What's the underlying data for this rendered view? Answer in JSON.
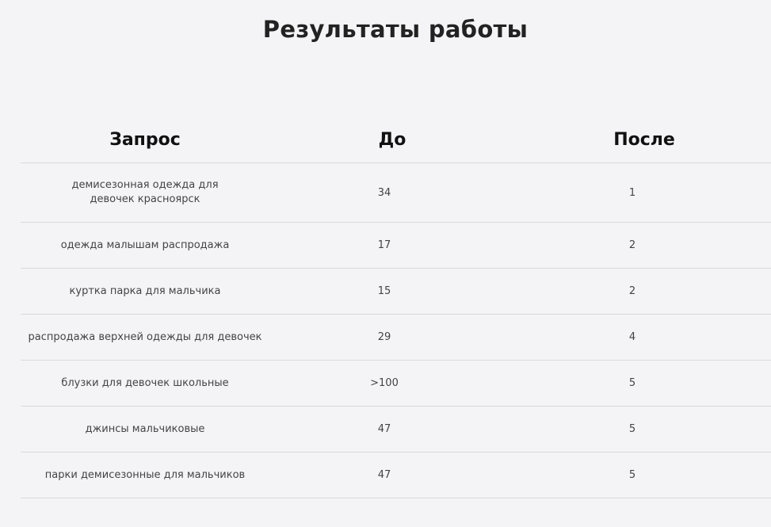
{
  "title": "Результаты работы",
  "table": {
    "headers": [
      "Запрос",
      "До",
      "После"
    ],
    "rows": [
      {
        "query": "демисезонная одежда для девочек красноярск",
        "before": "34",
        "after": "1"
      },
      {
        "query": "одежда малышам распродажа",
        "before": "17",
        "after": "2"
      },
      {
        "query": "куртка парка для мальчика",
        "before": "15",
        "after": "2"
      },
      {
        "query": "распродажа верхней одежды для девочек",
        "before": "29",
        "after": "4"
      },
      {
        "query": "блузки для девочек школьные",
        "before": ">100",
        "after": "5"
      },
      {
        "query": "джинсы мальчиковые",
        "before": "47",
        "after": "5"
      },
      {
        "query": "парки демисезонные для мальчиков",
        "before": "47",
        "after": "5"
      }
    ]
  }
}
